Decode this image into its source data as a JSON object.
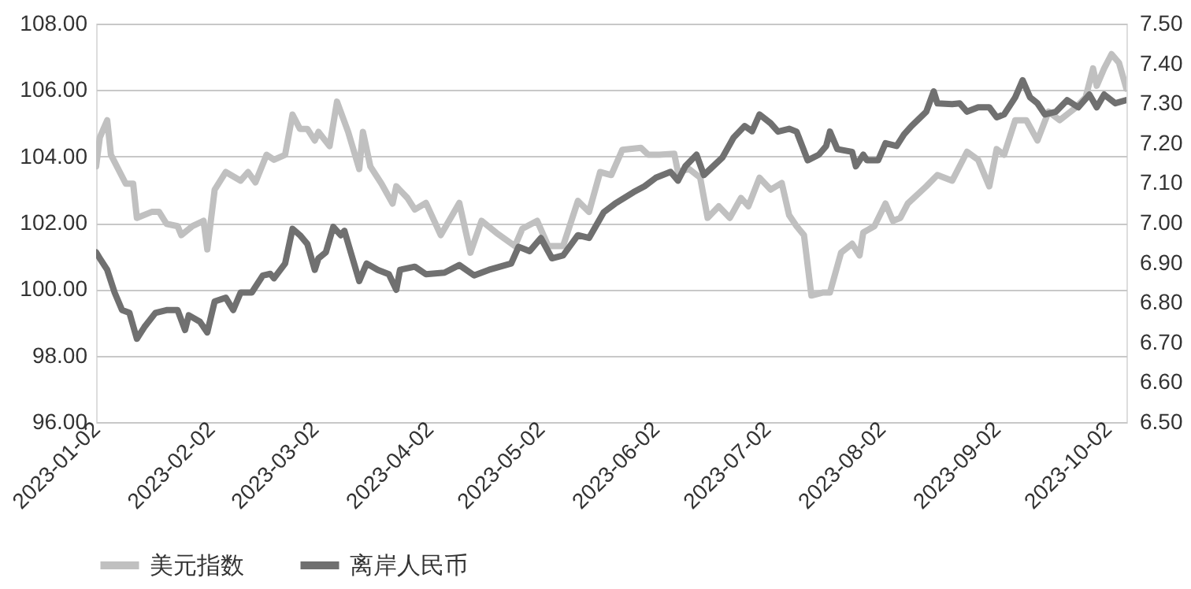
{
  "chart_data": {
    "type": "line",
    "xlim": [
      "2023-01-02",
      "2023-10-07"
    ],
    "xticks": [
      {
        "value": "2023-01-02",
        "label": "2023-01-02"
      },
      {
        "value": "2023-02-02",
        "label": "2023-02-02"
      },
      {
        "value": "2023-03-02",
        "label": "2023-03-02"
      },
      {
        "value": "2023-04-02",
        "label": "2023-04-02"
      },
      {
        "value": "2023-05-02",
        "label": "2023-05-02"
      },
      {
        "value": "2023-06-02",
        "label": "2023-06-02"
      },
      {
        "value": "2023-07-02",
        "label": "2023-07-02"
      },
      {
        "value": "2023-08-02",
        "label": "2023-08-02"
      },
      {
        "value": "2023-09-02",
        "label": "2023-09-02"
      },
      {
        "value": "2023-10-02",
        "label": "2023-10-02"
      }
    ],
    "ylim": [
      96,
      108
    ],
    "yticks": [
      {
        "value": 96,
        "label": "96.00"
      },
      {
        "value": 98,
        "label": "98.00"
      },
      {
        "value": 100,
        "label": "100.00"
      },
      {
        "value": 102,
        "label": "102.00"
      },
      {
        "value": 104,
        "label": "104.00"
      },
      {
        "value": 106,
        "label": "106.00"
      },
      {
        "value": 108,
        "label": "108.00"
      }
    ],
    "y2lim": [
      6.5,
      7.5
    ],
    "y2ticks": [
      {
        "value": 6.5,
        "label": "6.50"
      },
      {
        "value": 6.6,
        "label": "6.60"
      },
      {
        "value": 6.7,
        "label": "6.70"
      },
      {
        "value": 6.8,
        "label": "6.80"
      },
      {
        "value": 6.9,
        "label": "6.90"
      },
      {
        "value": 7.0,
        "label": "7.00"
      },
      {
        "value": 7.1,
        "label": "7.10"
      },
      {
        "value": 7.2,
        "label": "7.20"
      },
      {
        "value": 7.3,
        "label": "7.30"
      },
      {
        "value": 7.4,
        "label": "7.40"
      },
      {
        "value": 7.5,
        "label": "7.50"
      }
    ],
    "grid": "y",
    "legend": "bottom",
    "marker": "none",
    "line_style": "solid",
    "series": [
      {
        "name": "美元指数",
        "color": "#c0c0c0",
        "x": [
          "2023-01-02",
          "2023-01-03",
          "2023-01-05",
          "2023-01-06",
          "2023-01-10",
          "2023-01-12",
          "2023-01-13",
          "2023-01-17",
          "2023-01-19",
          "2023-01-21",
          "2023-01-24",
          "2023-01-25",
          "2023-01-28",
          "2023-01-31",
          "2023-02-01",
          "2023-02-03",
          "2023-02-06",
          "2023-02-10",
          "2023-02-12",
          "2023-02-14",
          "2023-02-17",
          "2023-02-19",
          "2023-02-22",
          "2023-02-24",
          "2023-02-26",
          "2023-02-28",
          "2023-03-02",
          "2023-03-03",
          "2023-03-06",
          "2023-03-08",
          "2023-03-11",
          "2023-03-14",
          "2023-03-15",
          "2023-03-17",
          "2023-03-20",
          "2023-03-23",
          "2023-03-24",
          "2023-03-27",
          "2023-03-29",
          "2023-04-01",
          "2023-04-05",
          "2023-04-10",
          "2023-04-13",
          "2023-04-16",
          "2023-04-20",
          "2023-04-25",
          "2023-04-27",
          "2023-05-01",
          "2023-05-04",
          "2023-05-08",
          "2023-05-12",
          "2023-05-15",
          "2023-05-18",
          "2023-05-21",
          "2023-05-24",
          "2023-05-29",
          "2023-05-31",
          "2023-06-03",
          "2023-06-07",
          "2023-06-08",
          "2023-06-11",
          "2023-06-14",
          "2023-06-16",
          "2023-06-19",
          "2023-06-22",
          "2023-06-25",
          "2023-06-27",
          "2023-06-30",
          "2023-07-03",
          "2023-07-06",
          "2023-07-08",
          "2023-07-10",
          "2023-07-12",
          "2023-07-14",
          "2023-07-17",
          "2023-07-19",
          "2023-07-22",
          "2023-07-25",
          "2023-07-27",
          "2023-07-28",
          "2023-07-31",
          "2023-08-03",
          "2023-08-05",
          "2023-08-07",
          "2023-08-09",
          "2023-08-14",
          "2023-08-17",
          "2023-08-21",
          "2023-08-25",
          "2023-08-28",
          "2023-08-31",
          "2023-09-02",
          "2023-09-04",
          "2023-09-07",
          "2023-09-10",
          "2023-09-13",
          "2023-09-16",
          "2023-09-19",
          "2023-09-23",
          "2023-09-26",
          "2023-09-28",
          "2023-09-29",
          "2023-10-01",
          "2023-10-03",
          "2023-10-05",
          "2023-10-07"
        ],
        "values": [
          103.7,
          104.57,
          105.09,
          104.05,
          103.18,
          103.18,
          102.15,
          102.33,
          102.33,
          101.97,
          101.9,
          101.63,
          101.9,
          102.06,
          101.2,
          103.0,
          103.53,
          103.27,
          103.53,
          103.22,
          104.05,
          103.9,
          104.05,
          105.26,
          104.83,
          104.83,
          104.48,
          104.74,
          104.31,
          105.65,
          104.74,
          103.62,
          104.74,
          103.7,
          103.18,
          102.58,
          103.1,
          102.75,
          102.4,
          102.6,
          101.63,
          102.6,
          101.1,
          102.06,
          101.7,
          101.3,
          101.82,
          102.06,
          101.3,
          101.3,
          102.66,
          102.33,
          103.53,
          103.44,
          104.2,
          104.26,
          104.05,
          104.05,
          104.08,
          103.53,
          103.62,
          103.36,
          102.15,
          102.5,
          102.15,
          102.75,
          102.5,
          103.36,
          103.0,
          103.2,
          102.23,
          101.9,
          101.63,
          99.81,
          99.9,
          99.9,
          101.1,
          101.37,
          101.02,
          101.71,
          101.9,
          102.58,
          102.06,
          102.15,
          102.58,
          103.1,
          103.44,
          103.27,
          104.14,
          103.9,
          103.1,
          104.22,
          104.05,
          105.09,
          105.09,
          104.48,
          105.35,
          105.09,
          105.44,
          105.78,
          106.65,
          106.13,
          106.65,
          107.08,
          106.82,
          106.04
        ]
      },
      {
        "name": "离岸人民币",
        "color": "#707070",
        "axis": "y2",
        "x": [
          "2023-01-02",
          "2023-01-03",
          "2023-01-05",
          "2023-01-07",
          "2023-01-09",
          "2023-01-11",
          "2023-01-13",
          "2023-01-15",
          "2023-01-18",
          "2023-01-21",
          "2023-01-24",
          "2023-01-26",
          "2023-01-27",
          "2023-01-30",
          "2023-02-01",
          "2023-02-03",
          "2023-02-06",
          "2023-02-08",
          "2023-02-10",
          "2023-02-13",
          "2023-02-16",
          "2023-02-18",
          "2023-02-19",
          "2023-02-22",
          "2023-02-24",
          "2023-02-26",
          "2023-02-28",
          "2023-03-02",
          "2023-03-03",
          "2023-03-05",
          "2023-03-07",
          "2023-03-09",
          "2023-03-10",
          "2023-03-14",
          "2023-03-16",
          "2023-03-19",
          "2023-03-22",
          "2023-03-24",
          "2023-03-25",
          "2023-03-29",
          "2023-04-01",
          "2023-04-06",
          "2023-04-10",
          "2023-04-14",
          "2023-04-18",
          "2023-04-21",
          "2023-04-24",
          "2023-04-26",
          "2023-04-29",
          "2023-05-02",
          "2023-05-05",
          "2023-05-08",
          "2023-05-12",
          "2023-05-15",
          "2023-05-19",
          "2023-05-22",
          "2023-05-27",
          "2023-05-30",
          "2023-06-02",
          "2023-06-06",
          "2023-06-08",
          "2023-06-10",
          "2023-06-13",
          "2023-06-15",
          "2023-06-20",
          "2023-06-23",
          "2023-06-26",
          "2023-06-28",
          "2023-06-30",
          "2023-07-03",
          "2023-07-05",
          "2023-07-08",
          "2023-07-10",
          "2023-07-13",
          "2023-07-16",
          "2023-07-18",
          "2023-07-19",
          "2023-07-21",
          "2023-07-25",
          "2023-07-26",
          "2023-07-28",
          "2023-07-29",
          "2023-08-01",
          "2023-08-03",
          "2023-08-06",
          "2023-08-08",
          "2023-08-10",
          "2023-08-14",
          "2023-08-16",
          "2023-08-17",
          "2023-08-21",
          "2023-08-23",
          "2023-08-25",
          "2023-08-28",
          "2023-08-31",
          "2023-09-02",
          "2023-09-04",
          "2023-09-07",
          "2023-09-09",
          "2023-09-11",
          "2023-09-13",
          "2023-09-15",
          "2023-09-18",
          "2023-09-21",
          "2023-09-24",
          "2023-09-27",
          "2023-09-29",
          "2023-10-01",
          "2023-10-04",
          "2023-10-07"
        ],
        "values": [
          6.926,
          6.911,
          6.882,
          6.825,
          6.781,
          6.774,
          6.709,
          6.738,
          6.774,
          6.781,
          6.781,
          6.731,
          6.768,
          6.752,
          6.725,
          6.803,
          6.812,
          6.781,
          6.825,
          6.825,
          6.868,
          6.872,
          6.861,
          6.898,
          6.985,
          6.969,
          6.947,
          6.882,
          6.911,
          6.926,
          6.99,
          6.969,
          6.98,
          6.854,
          6.898,
          6.882,
          6.871,
          6.832,
          6.882,
          6.89,
          6.871,
          6.875,
          6.894,
          6.868,
          6.882,
          6.89,
          6.898,
          6.94,
          6.929,
          6.962,
          6.911,
          6.918,
          6.969,
          6.962,
          7.027,
          7.048,
          7.077,
          7.092,
          7.113,
          7.128,
          7.106,
          7.142,
          7.171,
          7.12,
          7.164,
          7.214,
          7.243,
          7.23,
          7.272,
          7.25,
          7.229,
          7.236,
          7.229,
          7.157,
          7.171,
          7.193,
          7.229,
          7.185,
          7.178,
          7.142,
          7.171,
          7.157,
          7.157,
          7.2,
          7.193,
          7.222,
          7.243,
          7.279,
          7.33,
          7.3,
          7.298,
          7.3,
          7.279,
          7.29,
          7.29,
          7.265,
          7.272,
          7.315,
          7.358,
          7.315,
          7.3,
          7.272,
          7.279,
          7.308,
          7.29,
          7.322,
          7.29,
          7.322,
          7.3,
          7.308
        ]
      }
    ]
  }
}
